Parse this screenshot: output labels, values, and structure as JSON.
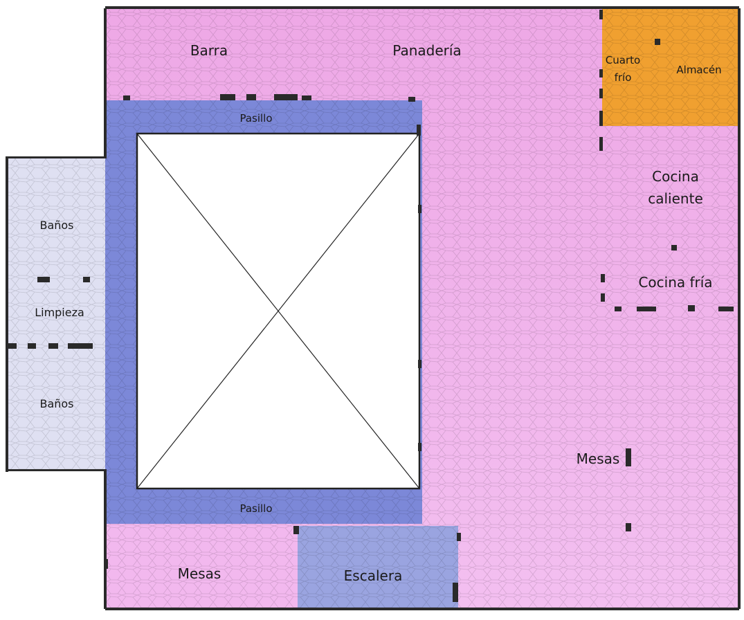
{
  "rooms": {
    "barra": "Barra",
    "panaderia": "Panadería",
    "cuarto_frio_line1": "Cuarto",
    "cuarto_frio_line2": "frío",
    "almacen": "Almacén",
    "cocina_caliente_line1": "Cocina",
    "cocina_caliente_line2": "caliente",
    "cocina_fria": "Cocina fría",
    "pasillo_top": "Pasillo",
    "pasillo_bottom": "Pasillo",
    "banos_top": "Baños",
    "limpieza": "Limpieza",
    "banos_bottom": "Baños",
    "mesas_main": "Mesas",
    "mesas_bottom": "Mesas",
    "escalera": "Escalera"
  },
  "colors": {
    "pink": "#eea8e6",
    "pink_light": "#f2b8ee",
    "orange": "#f0a030",
    "blue_corridor": "#7c88d8",
    "blue_stairs": "#9aa4e0",
    "lavender": "#dfe0f2",
    "wall": "#2a2a2a",
    "void": "#ffffff"
  }
}
